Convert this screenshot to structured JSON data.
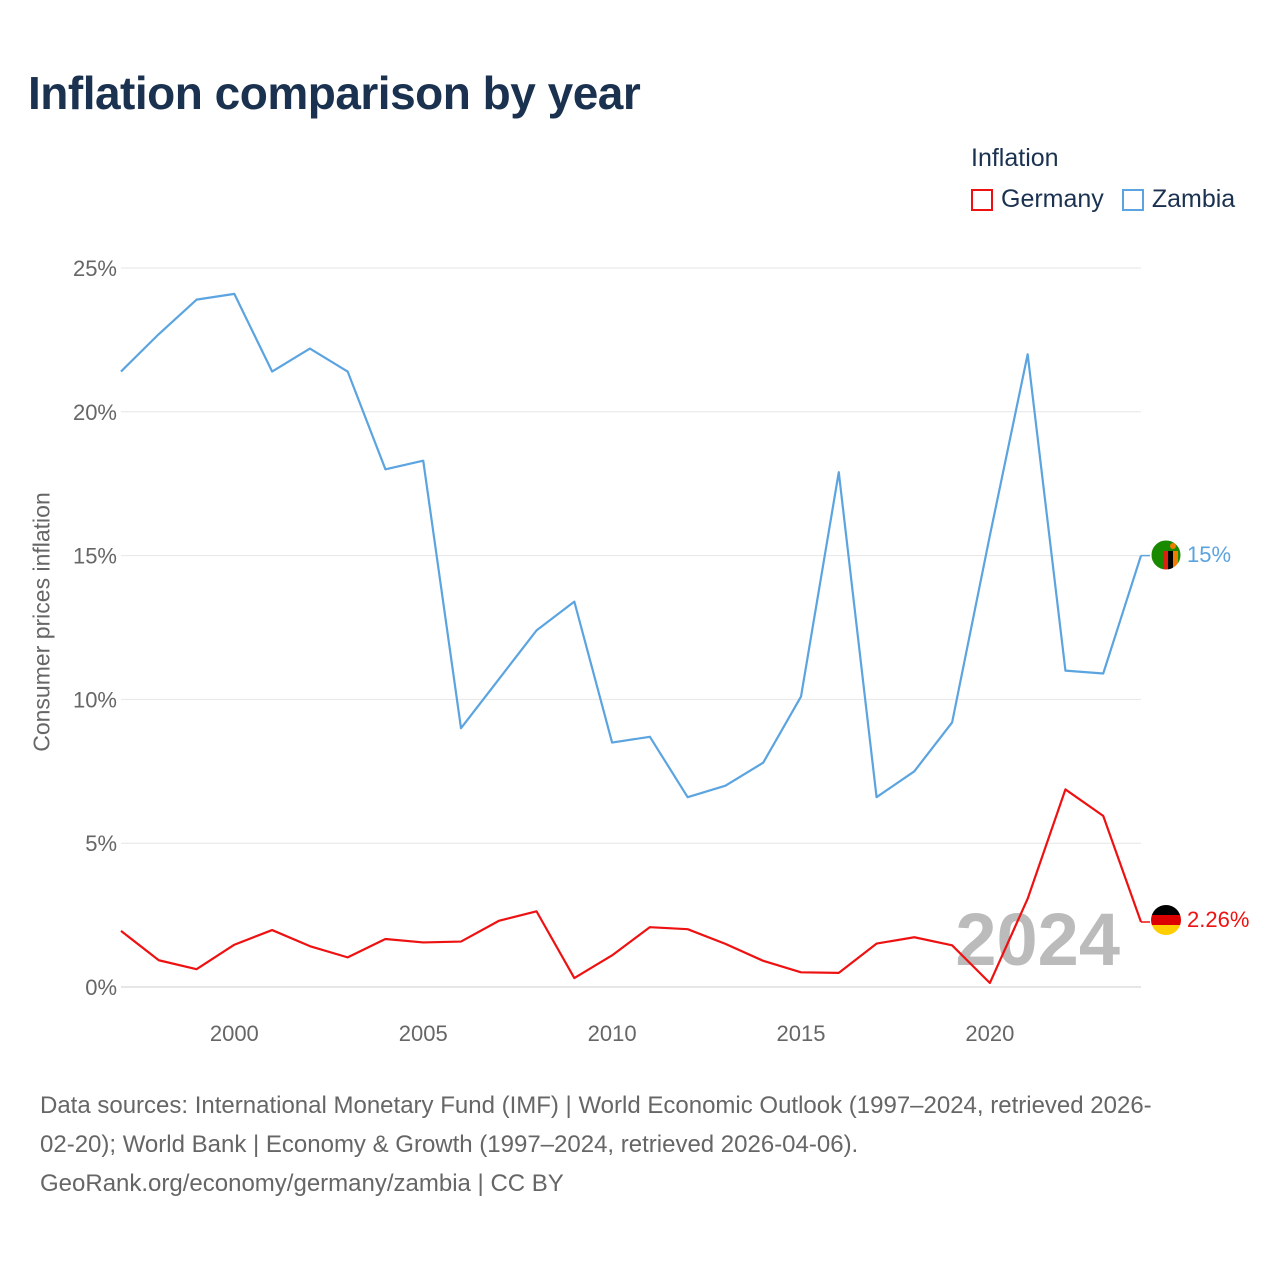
{
  "title": "Inflation comparison by year",
  "legend": {
    "title": "Inflation",
    "items": [
      {
        "name": "Germany",
        "color": "#ee1111"
      },
      {
        "name": "Zambia",
        "color": "#5ba4e0"
      }
    ]
  },
  "chart_data": {
    "type": "line",
    "ylabel": "Consumer prices inflation",
    "xlabel": "",
    "xlim": [
      1997,
      2024
    ],
    "ylim": [
      0,
      25
    ],
    "x_ticks": [
      2000,
      2005,
      2010,
      2015,
      2020
    ],
    "y_ticks": [
      {
        "value": 0,
        "label": "0%"
      },
      {
        "value": 5,
        "label": "5%"
      },
      {
        "value": 10,
        "label": "10%"
      },
      {
        "value": 15,
        "label": "15%"
      },
      {
        "value": 20,
        "label": "20%"
      },
      {
        "value": 25,
        "label": "25%"
      }
    ],
    "x": [
      1997,
      1998,
      1999,
      2000,
      2001,
      2002,
      2003,
      2004,
      2005,
      2006,
      2007,
      2008,
      2009,
      2010,
      2011,
      2012,
      2013,
      2014,
      2015,
      2016,
      2017,
      2018,
      2019,
      2020,
      2021,
      2022,
      2023,
      2024
    ],
    "series": [
      {
        "name": "Germany",
        "color": "#ee1111",
        "values": [
          1.95,
          0.93,
          0.62,
          1.47,
          1.98,
          1.42,
          1.03,
          1.67,
          1.55,
          1.58,
          2.3,
          2.63,
          0.31,
          1.1,
          2.08,
          2.01,
          1.5,
          0.91,
          0.51,
          0.49,
          1.51,
          1.73,
          1.45,
          0.14,
          3.07,
          6.87,
          5.95,
          2.26
        ],
        "end_label": "2.26%"
      },
      {
        "name": "Zambia",
        "color": "#5ba4e0",
        "values": [
          21.4,
          22.7,
          23.9,
          24.1,
          21.4,
          22.2,
          21.4,
          18.0,
          18.3,
          9.0,
          10.7,
          12.4,
          13.4,
          8.5,
          8.7,
          6.6,
          7.0,
          7.8,
          10.1,
          17.9,
          6.6,
          7.5,
          9.2,
          15.7,
          22.0,
          11.0,
          10.9,
          15.0
        ],
        "end_label": "15%"
      }
    ],
    "year_watermark": "2024"
  },
  "icons": {
    "zambia_flag": "zambia-flag-icon",
    "germany_flag": "germany-flag-icon"
  },
  "footer": {
    "sources_line1": "Data sources: International Monetary Fund (IMF) | World Economic Outlook (1997–2024, retrieved 2026-",
    "sources_line2": "02-20); World Bank | Economy & Growth (1997–2024, retrieved 2026-04-06).",
    "credit": "GeoRank.org/economy/germany/zambia | CC BY"
  }
}
